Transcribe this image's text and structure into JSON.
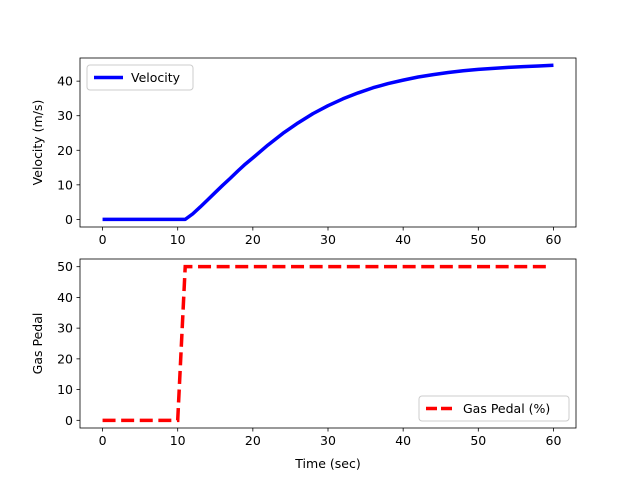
{
  "chart_data": [
    {
      "type": "line",
      "xlabel": "",
      "ylabel": "Velocity (m/s)",
      "xlim": [
        -3,
        63
      ],
      "ylim": [
        -2.2,
        46.7
      ],
      "xticks": [
        0,
        10,
        20,
        30,
        40,
        50,
        60
      ],
      "yticks": [
        0,
        10,
        20,
        30,
        40
      ],
      "grid": false,
      "legend": {
        "placement": "upper-left",
        "entries": [
          "Velocity"
        ]
      },
      "series": [
        {
          "name": "Velocity",
          "color": "#0000ff",
          "style": "solid",
          "x": [
            0,
            11,
            12,
            13,
            14,
            15,
            16,
            17,
            18,
            19,
            20,
            22,
            24,
            26,
            28,
            30,
            32,
            34,
            36,
            38,
            40,
            42,
            44,
            46,
            48,
            50,
            52,
            54,
            56,
            58,
            60
          ],
          "y": [
            0,
            0,
            1.6,
            3.6,
            5.7,
            7.8,
            9.9,
            11.9,
            14.0,
            16.0,
            17.8,
            21.5,
            24.9,
            27.9,
            30.6,
            32.9,
            34.9,
            36.6,
            38.1,
            39.3,
            40.3,
            41.2,
            41.9,
            42.5,
            43.0,
            43.4,
            43.7,
            44.0,
            44.2,
            44.4,
            44.6
          ]
        }
      ]
    },
    {
      "type": "line",
      "xlabel": "Time (sec)",
      "ylabel": "Gas Pedal",
      "xlim": [
        -3,
        63
      ],
      "ylim": [
        -2.5,
        52.5
      ],
      "xticks": [
        0,
        10,
        20,
        30,
        40,
        50,
        60
      ],
      "yticks": [
        0,
        10,
        20,
        30,
        40,
        50
      ],
      "grid": false,
      "legend": {
        "placement": "lower-right",
        "entries": [
          "Gas Pedal (%)"
        ]
      },
      "series": [
        {
          "name": "Gas Pedal (%)",
          "color": "#ff0000",
          "style": "dashed",
          "x": [
            0,
            10,
            11,
            59
          ],
          "y": [
            0,
            0,
            50,
            50
          ]
        }
      ]
    }
  ]
}
